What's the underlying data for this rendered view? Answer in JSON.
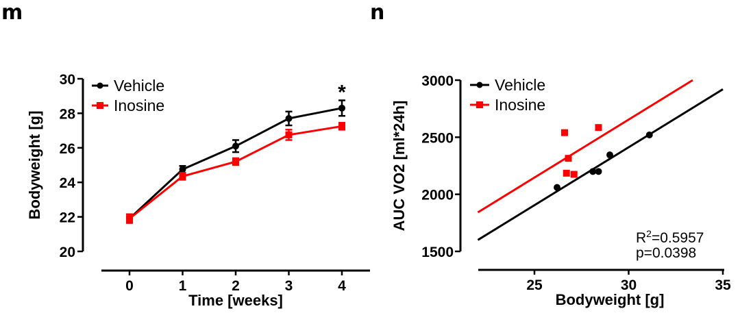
{
  "colors": {
    "vehicle": "#000000",
    "inosine": "#ff0000",
    "background": "#ffffff"
  },
  "chart_data": [
    {
      "panel_label": "m",
      "type": "line",
      "title": "",
      "xlabel": "Time [weeks]",
      "ylabel": "Bodyweight [g]",
      "xlim": [
        -0.5,
        4.5
      ],
      "ylim": [
        20,
        30
      ],
      "x": [
        0,
        1,
        2,
        3,
        4
      ],
      "x_tick_labels": [
        "0",
        "1",
        "2",
        "3",
        "4"
      ],
      "y_ticks": [
        20,
        22,
        24,
        26,
        28,
        30
      ],
      "y_tick_labels": [
        "20",
        "22",
        "24",
        "26",
        "28",
        "30"
      ],
      "grid": false,
      "legend_position": "top-left",
      "series": [
        {
          "name": "Vehicle",
          "marker": "circle",
          "color_key": "vehicle",
          "values": [
            21.9,
            24.75,
            26.1,
            27.7,
            28.3
          ],
          "errors": [
            0.25,
            0.2,
            0.35,
            0.4,
            0.45
          ]
        },
        {
          "name": "Inosine",
          "marker": "square",
          "color_key": "inosine",
          "values": [
            21.9,
            24.35,
            25.2,
            26.75,
            27.25
          ],
          "errors": [
            0.25,
            0.2,
            0.2,
            0.3,
            0.2
          ]
        }
      ],
      "annotations": [
        {
          "text": "*",
          "x": 4,
          "y": 29.5
        }
      ]
    },
    {
      "panel_label": "n",
      "type": "scatter",
      "title": "",
      "xlabel": "Bodyweight [g]",
      "ylabel": "AUC VO2 [ml*24h]",
      "xlim": [
        22,
        35
      ],
      "ylim": [
        1500,
        3000
      ],
      "x_ticks": [
        25,
        30,
        35
      ],
      "x_tick_labels": [
        "25",
        "30",
        "35"
      ],
      "y_ticks": [
        1500,
        2000,
        2500,
        3000
      ],
      "y_tick_labels": [
        "1500",
        "2000",
        "2500",
        "3000"
      ],
      "grid": false,
      "legend_position": "top-left",
      "series": [
        {
          "name": "Vehicle",
          "marker": "circle",
          "color_key": "vehicle",
          "points": [
            [
              26.2,
              2060
            ],
            [
              28.1,
              2200
            ],
            [
              28.4,
              2200
            ],
            [
              29.0,
              2345
            ],
            [
              31.1,
              2520
            ]
          ],
          "fit_line": [
            [
              22.0,
              1600
            ],
            [
              35.0,
              2920
            ]
          ]
        },
        {
          "name": "Inosine",
          "marker": "square",
          "color_key": "inosine",
          "points": [
            [
              26.6,
              2540
            ],
            [
              28.4,
              2585
            ],
            [
              26.8,
              2315
            ],
            [
              26.7,
              2185
            ],
            [
              27.1,
              2175
            ]
          ],
          "fit_line": [
            [
              22.0,
              1842
            ],
            [
              33.4,
              3000
            ]
          ]
        }
      ],
      "annotations": [
        {
          "text_prefix": "R",
          "superscript": "2",
          "text_suffix": "=0.5957"
        },
        {
          "text": "p=0.0398"
        }
      ]
    }
  ]
}
